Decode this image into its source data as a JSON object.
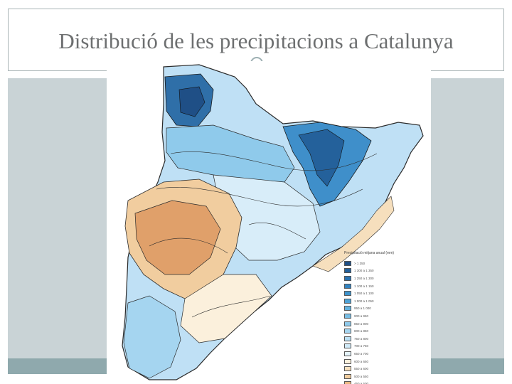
{
  "slide": {
    "title": "Distribució de les precipitacions a Catalunya"
  },
  "map": {
    "legend": {
      "title": "Precipitació mitjana anual (mm)",
      "items": [
        {
          "label": "> 1 350",
          "color": "#1f4f86"
        },
        {
          "label": "1 300 a 1 350",
          "color": "#24619b"
        },
        {
          "label": "1 250 a 1 300",
          "color": "#2a72b0"
        },
        {
          "label": "1 100 a 1 150",
          "color": "#3383c0"
        },
        {
          "label": "1 050 a 1 100",
          "color": "#3e93cc"
        },
        {
          "label": "1 000 a 1 050",
          "color": "#4ea2d6"
        },
        {
          "label": "950 a 1 000",
          "color": "#62b1de"
        },
        {
          "label": "900 a 950",
          "color": "#79bee5"
        },
        {
          "label": "850 a 900",
          "color": "#8fcaeb"
        },
        {
          "label": "800 a 850",
          "color": "#a5d5f0"
        },
        {
          "label": "750 a 800",
          "color": "#bbe0f4"
        },
        {
          "label": "700 a 750",
          "color": "#d0eaf8"
        },
        {
          "label": "650 a 700",
          "color": "#e4f3fb"
        },
        {
          "label": "600 a 650",
          "color": "#fbf0dc"
        },
        {
          "label": "550 a 600",
          "color": "#f6dfbd"
        },
        {
          "label": "500 a 550",
          "color": "#f1cd9f"
        },
        {
          "label": "450 a 500",
          "color": "#ebb883"
        },
        {
          "label": "400 a 450",
          "color": "#e0a06a"
        }
      ]
    }
  }
}
